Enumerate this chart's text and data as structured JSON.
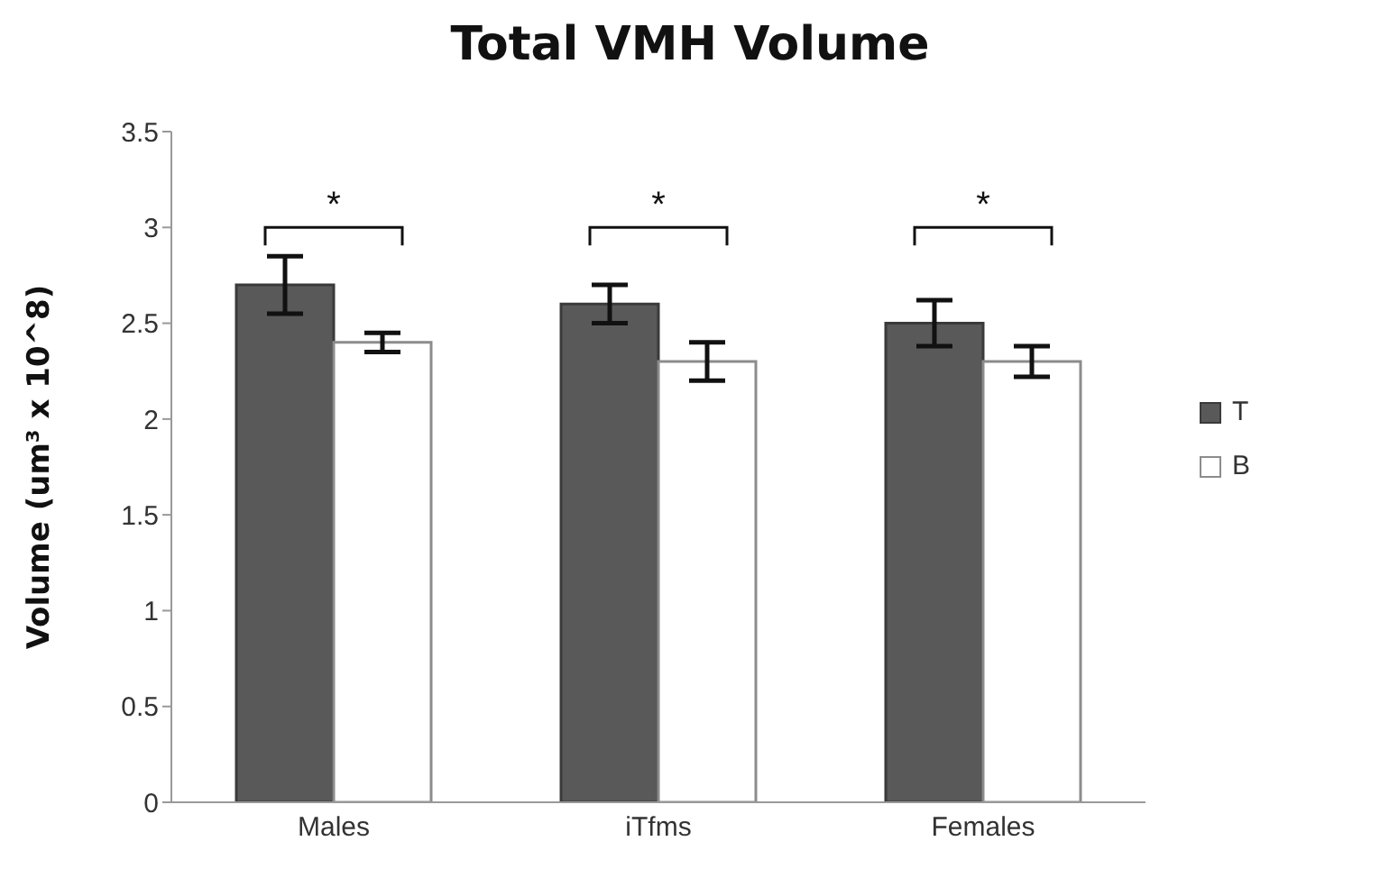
{
  "chart_data": {
    "type": "bar",
    "title": "Total VMH Volume",
    "ylabel": "Volume (um³ x 10^8)",
    "categories": [
      "Males",
      "iTfms",
      "Females"
    ],
    "series": [
      {
        "name": "T",
        "color": "#595959",
        "values": [
          2.7,
          2.6,
          2.5
        ],
        "errors": [
          0.15,
          0.1,
          0.12
        ]
      },
      {
        "name": "B",
        "color": "#ffffff",
        "values": [
          2.4,
          2.3,
          2.3
        ],
        "errors": [
          0.05,
          0.1,
          0.08
        ]
      }
    ],
    "ylim": [
      0,
      3.5
    ],
    "yticks": [
      0,
      0.5,
      1,
      1.5,
      2,
      2.5,
      3,
      3.5
    ],
    "grid": false,
    "legend": "right",
    "annotations": [
      "*",
      "*",
      "*"
    ]
  }
}
